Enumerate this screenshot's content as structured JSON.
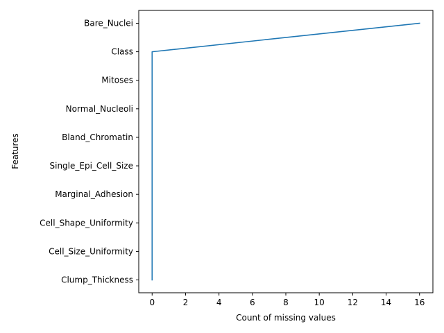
{
  "chart_data": {
    "type": "line",
    "title": "",
    "xlabel": "Count of missing values",
    "ylabel": "Features",
    "categories": [
      "Clump_Thickness",
      "Cell_Size_Uniformity",
      "Cell_Shape_Uniformity",
      "Marginal_Adhesion",
      "Single_Epi_Cell_Size",
      "Bland_Chromatin",
      "Normal_Nucleoli",
      "Mitoses",
      "Class",
      "Bare_Nuclei"
    ],
    "series": [
      {
        "values": [
          0,
          0,
          0,
          0,
          0,
          0,
          0,
          0,
          0,
          16
        ]
      }
    ],
    "xticks": [
      0,
      2,
      4,
      6,
      8,
      10,
      12,
      14,
      16
    ],
    "xlim": [
      -0.8,
      16.8
    ],
    "grid": false,
    "colors": {
      "line": "#1f77b4",
      "axes": "#000000"
    }
  }
}
